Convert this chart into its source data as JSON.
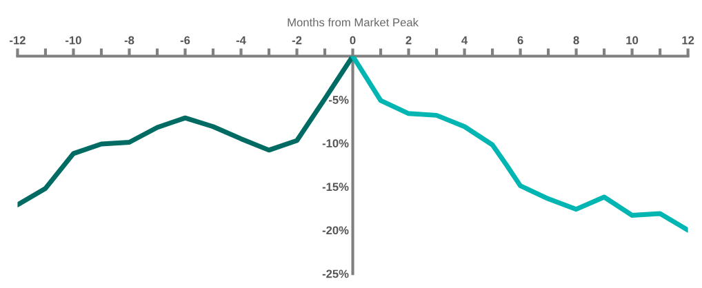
{
  "chart_data": {
    "type": "line",
    "xlabel": "Months from Market Peak",
    "series": [
      {
        "color": "#006b63",
        "x": [
          -12,
          -11,
          -10,
          -9,
          -8,
          -7,
          -6,
          -5,
          -4,
          -3,
          -2,
          -1,
          0
        ],
        "values": [
          -17.1,
          -15.2,
          -11.2,
          -10.1,
          -9.9,
          -8.2,
          -7.1,
          -8.1,
          -9.5,
          -10.8,
          -9.7,
          -4.9,
          0
        ]
      },
      {
        "color": "#00b5b2",
        "x": [
          0,
          1,
          2,
          3,
          4,
          5,
          5.5,
          6,
          7,
          8,
          9,
          10,
          11,
          12
        ],
        "values": [
          0,
          -5.1,
          -6.6,
          -6.8,
          -8.1,
          -10.2,
          -12.5,
          -14.9,
          -16.4,
          -17.6,
          -16.2,
          -18.3,
          -18.1,
          -20.0
        ]
      }
    ],
    "xlim": [
      -12,
      12
    ],
    "xticks": [
      -12,
      {
        "value": -11,
        "label": null
      },
      -10,
      {
        "value": -9,
        "label": null
      },
      -8,
      {
        "value": -7,
        "label": null
      },
      -6,
      {
        "value": -5,
        "label": null
      },
      -4,
      {
        "value": -3,
        "label": null
      },
      -2,
      {
        "value": -1,
        "label": null
      },
      0,
      {
        "value": 1,
        "label": null
      },
      2,
      {
        "value": 3,
        "label": null
      },
      4,
      {
        "value": 5,
        "label": null
      },
      6,
      {
        "value": 7,
        "label": null
      },
      8,
      {
        "value": 9,
        "label": null
      },
      10,
      {
        "value": 11,
        "label": null
      },
      12
    ],
    "ylim": [
      -25,
      0
    ],
    "yticks": [
      {
        "value": -5,
        "label": "-5%"
      },
      {
        "value": -10,
        "label": "-10%"
      },
      {
        "value": -15,
        "label": "-15%"
      },
      {
        "value": -20,
        "label": "-20%"
      },
      {
        "value": -25,
        "label": "-25%"
      }
    ],
    "grid": false,
    "marker": "none",
    "line_style": "solid"
  }
}
